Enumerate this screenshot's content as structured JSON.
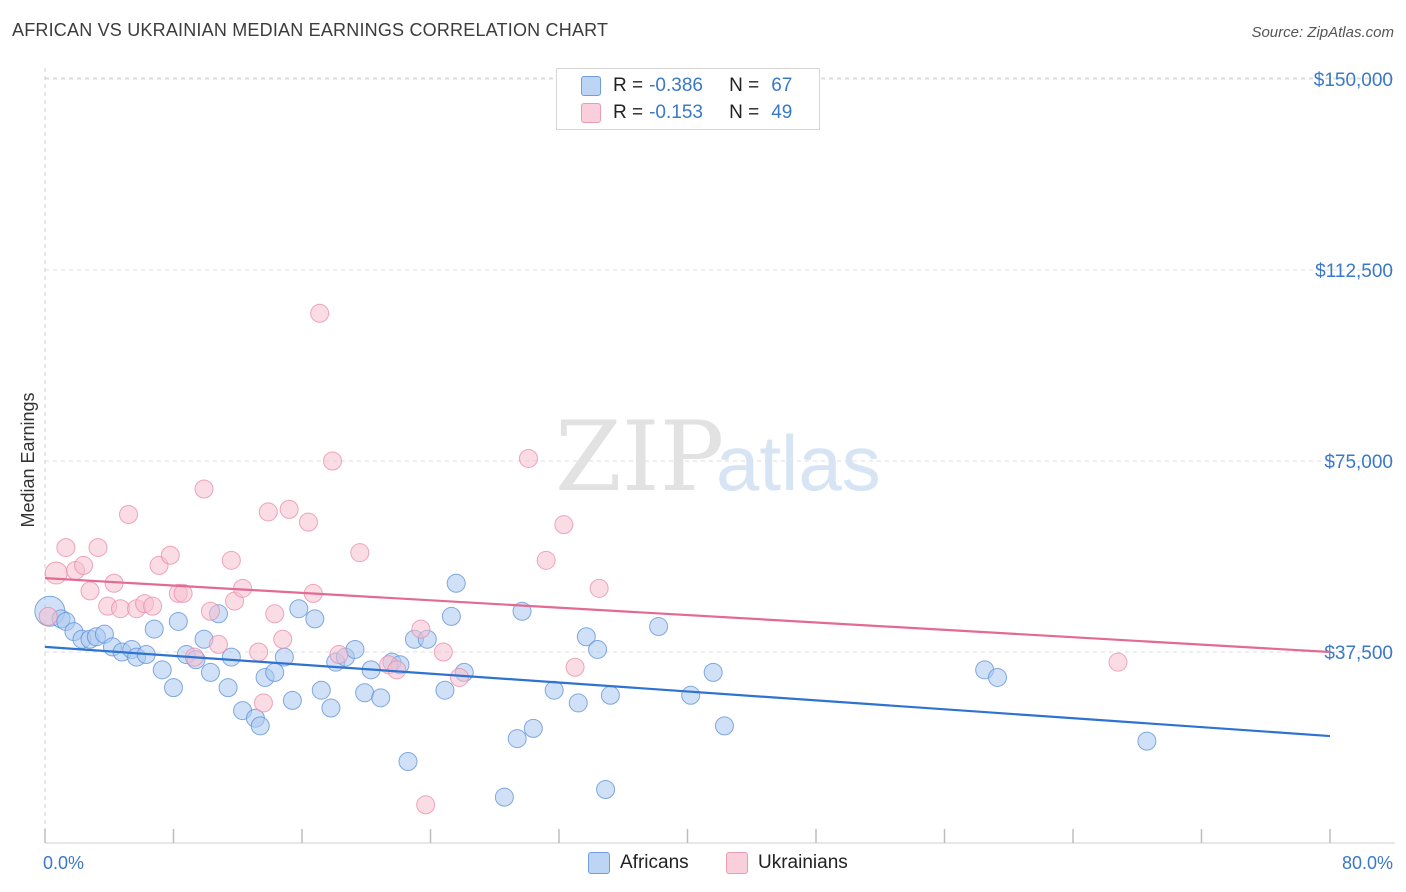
{
  "title": "AFRICAN VS UKRAINIAN MEDIAN EARNINGS CORRELATION CHART",
  "source": "Source: ZipAtlas.com",
  "watermark": {
    "zip": "ZIP",
    "atlas": "atlas"
  },
  "colors": {
    "africans_fill": "#a9c8f0",
    "africans_stroke": "#5b8fd6",
    "africans_line": "#2f73d1",
    "ukrainians_fill": "#f6bfd0",
    "ukrainians_stroke": "#e98aa8",
    "ukrainians_line": "#e26a93",
    "tick_text": "#3a78c8",
    "grid": "#dcdcdc"
  },
  "legend": {
    "rows": [
      {
        "r_label": "R =",
        "r_value": "-0.386",
        "n_label": "N =",
        "n_value": "67",
        "series": "Africans"
      },
      {
        "r_label": "R =",
        "r_value": "-0.153",
        "n_label": "N =",
        "n_value": "49",
        "series": "Ukrainians"
      }
    ]
  },
  "bottom_legend": {
    "africans": "Africans",
    "ukrainians": "Ukrainians"
  },
  "chart_data": {
    "type": "scatter",
    "title": "AFRICAN VS UKRAINIAN MEDIAN EARNINGS CORRELATION CHART",
    "xlabel": "",
    "ylabel": "Median Earnings",
    "xlim": [
      0,
      80
    ],
    "ylim": [
      0,
      155000
    ],
    "x_tick_labels": [
      "0.0%",
      "80.0%"
    ],
    "y_ticks": [
      37500,
      75000,
      112500,
      150000
    ],
    "y_tick_labels": [
      "$37,500",
      "$75,000",
      "$112,500",
      "$150,000"
    ],
    "grid": true,
    "legend_position": "top-center",
    "series": [
      {
        "name": "Africans",
        "trend": {
          "x": [
            0,
            80
          ],
          "y": [
            38500,
            21000
          ]
        },
        "points": [
          [
            0.3,
            45500
          ],
          [
            1.0,
            44000
          ],
          [
            1.3,
            43500
          ],
          [
            1.8,
            41500
          ],
          [
            2.3,
            40000
          ],
          [
            2.8,
            40000
          ],
          [
            3.2,
            40500
          ],
          [
            3.7,
            41000
          ],
          [
            4.2,
            38500
          ],
          [
            4.8,
            37500
          ],
          [
            5.4,
            38000
          ],
          [
            5.7,
            36500
          ],
          [
            6.3,
            37000
          ],
          [
            6.8,
            42000
          ],
          [
            7.3,
            34000
          ],
          [
            8.0,
            30500
          ],
          [
            8.3,
            43500
          ],
          [
            8.8,
            37000
          ],
          [
            9.4,
            36000
          ],
          [
            9.9,
            40000
          ],
          [
            10.3,
            33500
          ],
          [
            10.8,
            45000
          ],
          [
            11.4,
            30500
          ],
          [
            11.6,
            36500
          ],
          [
            12.3,
            26000
          ],
          [
            13.1,
            24500
          ],
          [
            13.4,
            23000
          ],
          [
            13.7,
            32500
          ],
          [
            14.3,
            33500
          ],
          [
            14.9,
            36500
          ],
          [
            15.4,
            28000
          ],
          [
            15.8,
            46000
          ],
          [
            16.8,
            44000
          ],
          [
            17.2,
            30000
          ],
          [
            17.8,
            26500
          ],
          [
            18.1,
            35500
          ],
          [
            18.7,
            36500
          ],
          [
            19.3,
            38000
          ],
          [
            19.9,
            29500
          ],
          [
            20.3,
            34000
          ],
          [
            20.9,
            28500
          ],
          [
            21.6,
            35500
          ],
          [
            22.1,
            35000
          ],
          [
            22.6,
            16000
          ],
          [
            23.0,
            40000
          ],
          [
            23.8,
            40000
          ],
          [
            24.9,
            30000
          ],
          [
            25.3,
            44500
          ],
          [
            25.6,
            51000
          ],
          [
            26.1,
            33500
          ],
          [
            28.6,
            9000
          ],
          [
            29.4,
            20500
          ],
          [
            29.7,
            45500
          ],
          [
            30.4,
            22500
          ],
          [
            31.7,
            30000
          ],
          [
            33.2,
            27500
          ],
          [
            33.7,
            40500
          ],
          [
            34.4,
            38000
          ],
          [
            34.9,
            10500
          ],
          [
            35.2,
            29000
          ],
          [
            38.2,
            42500
          ],
          [
            40.2,
            29000
          ],
          [
            41.6,
            33500
          ],
          [
            42.3,
            23000
          ],
          [
            58.5,
            34000
          ],
          [
            59.3,
            32500
          ],
          [
            68.6,
            20000
          ]
        ]
      },
      {
        "name": "Ukrainians",
        "trend": {
          "x": [
            0,
            80
          ],
          "y": [
            52000,
            37500
          ]
        },
        "points": [
          [
            0.2,
            44500
          ],
          [
            0.7,
            53000
          ],
          [
            1.3,
            58000
          ],
          [
            1.9,
            53500
          ],
          [
            2.4,
            54500
          ],
          [
            2.8,
            49500
          ],
          [
            3.3,
            58000
          ],
          [
            3.9,
            46500
          ],
          [
            4.3,
            51000
          ],
          [
            4.7,
            46000
          ],
          [
            5.2,
            64500
          ],
          [
            5.7,
            46000
          ],
          [
            6.2,
            47000
          ],
          [
            6.7,
            46500
          ],
          [
            7.1,
            54500
          ],
          [
            7.8,
            56500
          ],
          [
            8.3,
            49000
          ],
          [
            8.6,
            49000
          ],
          [
            9.3,
            36500
          ],
          [
            9.9,
            69500
          ],
          [
            10.3,
            45500
          ],
          [
            10.8,
            39000
          ],
          [
            11.6,
            55500
          ],
          [
            11.8,
            47500
          ],
          [
            12.3,
            50000
          ],
          [
            13.3,
            37500
          ],
          [
            13.6,
            27500
          ],
          [
            13.9,
            65000
          ],
          [
            14.3,
            45000
          ],
          [
            14.8,
            40000
          ],
          [
            15.2,
            65500
          ],
          [
            16.4,
            63000
          ],
          [
            16.7,
            49000
          ],
          [
            17.1,
            104000
          ],
          [
            17.9,
            75000
          ],
          [
            18.3,
            37000
          ],
          [
            19.6,
            57000
          ],
          [
            21.4,
            35000
          ],
          [
            21.9,
            34000
          ],
          [
            23.4,
            42000
          ],
          [
            23.7,
            7500
          ],
          [
            24.8,
            37500
          ],
          [
            25.8,
            32500
          ],
          [
            30.1,
            75500
          ],
          [
            31.2,
            55500
          ],
          [
            32.3,
            62500
          ],
          [
            33.0,
            34500
          ],
          [
            34.5,
            50000
          ],
          [
            66.8,
            35500
          ]
        ]
      }
    ]
  }
}
